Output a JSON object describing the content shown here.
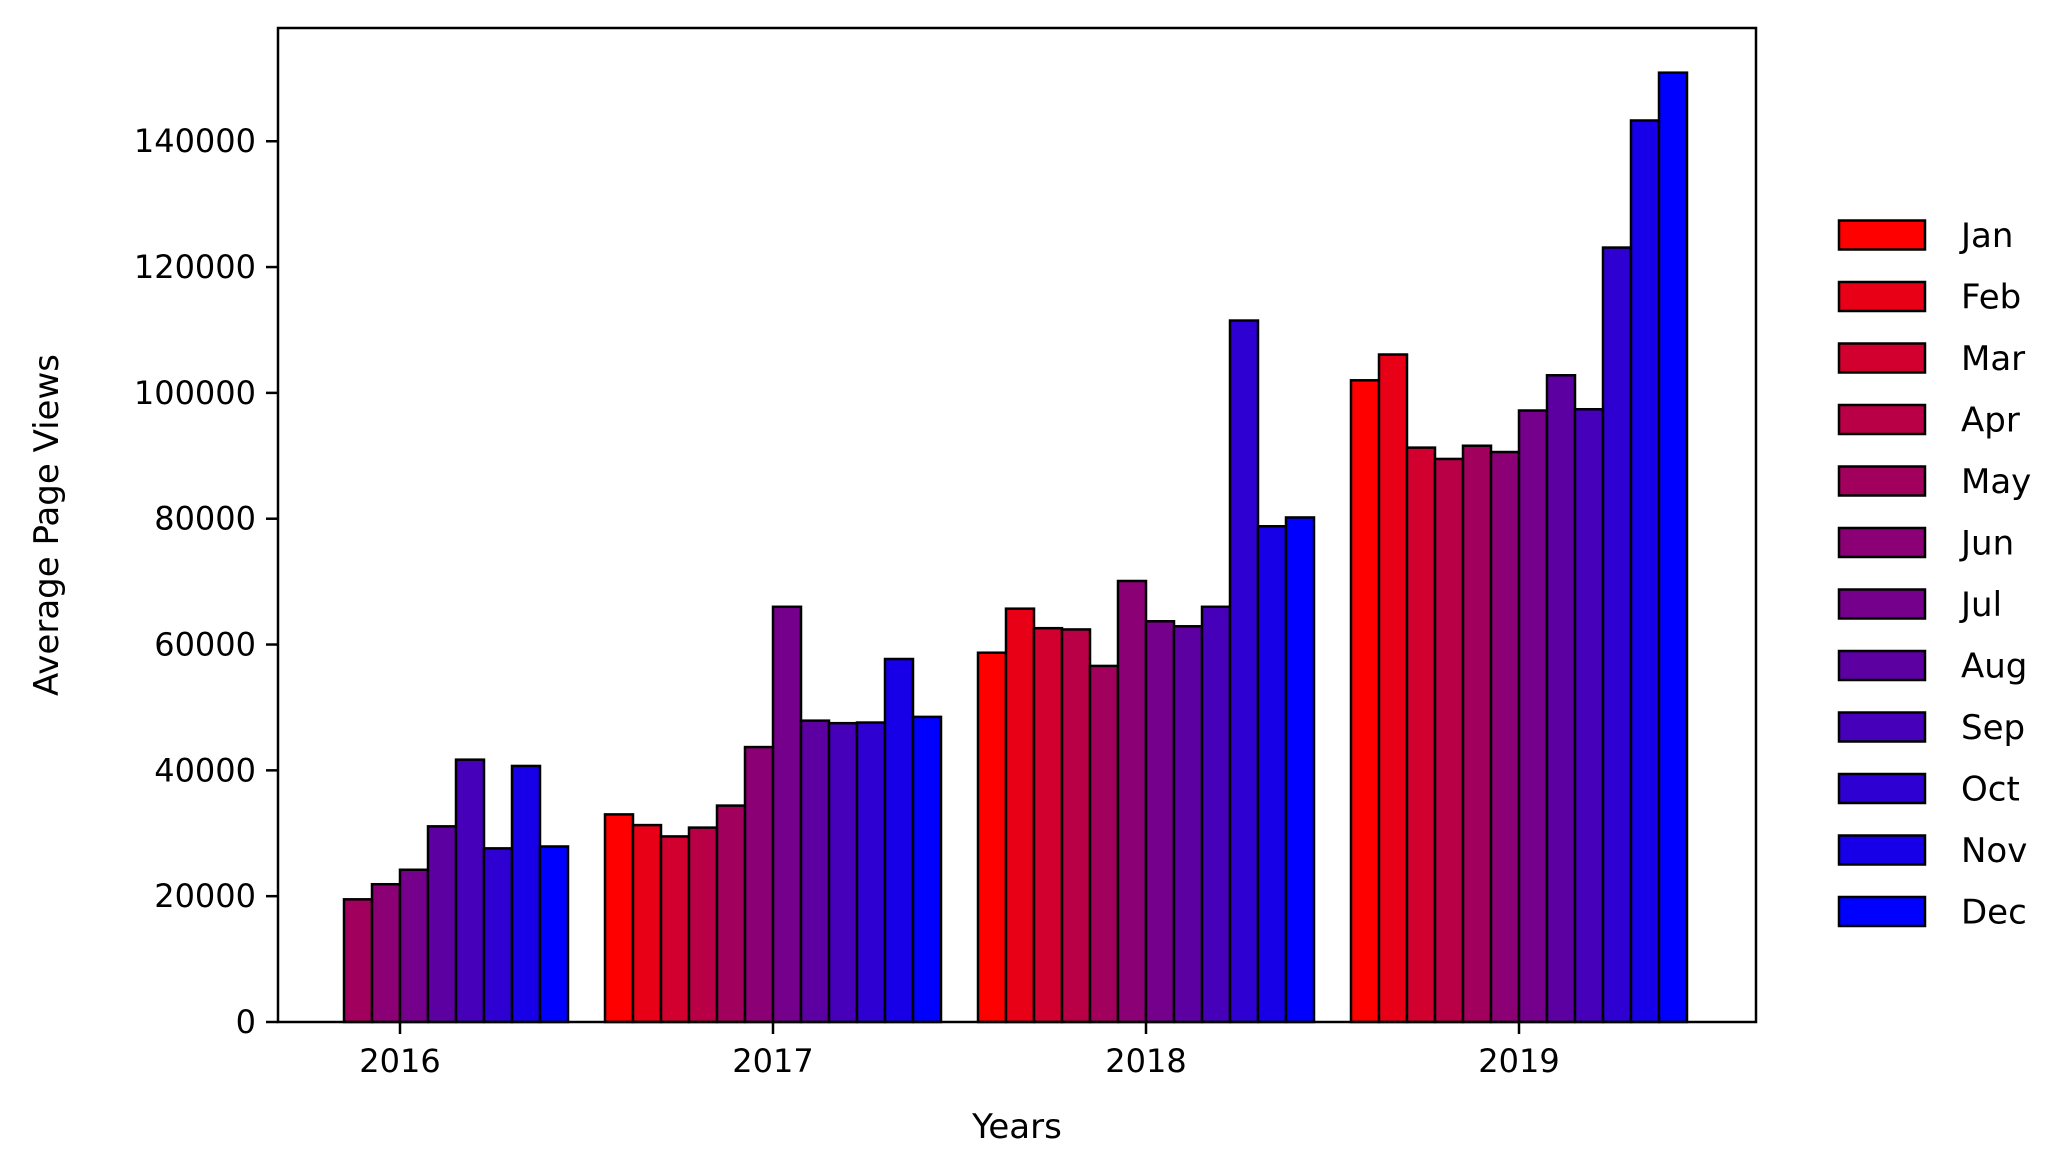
{
  "chart_data": {
    "type": "bar",
    "title": "",
    "xlabel": "Years",
    "ylabel": "Average Page Views",
    "categories": [
      "2016",
      "2017",
      "2018",
      "2019"
    ],
    "ylim": [
      0,
      158000
    ],
    "yticks": [
      0,
      20000,
      40000,
      60000,
      80000,
      100000,
      120000,
      140000
    ],
    "yticks_labels": [
      "0",
      "20000",
      "40000",
      "60000",
      "80000",
      "100000",
      "120000",
      "140000"
    ],
    "grid": false,
    "legend_position": "right",
    "series": [
      {
        "name": "Jan",
        "color": "#ff0000",
        "values": [
          null,
          33000,
          58700,
          102000
        ]
      },
      {
        "name": "Feb",
        "color": "#e80017",
        "values": [
          null,
          31300,
          65700,
          106100
        ]
      },
      {
        "name": "Mar",
        "color": "#d1002e",
        "values": [
          null,
          29500,
          62600,
          91300
        ]
      },
      {
        "name": "Apr",
        "color": "#b90046",
        "values": [
          null,
          30900,
          62400,
          89500
        ]
      },
      {
        "name": "May",
        "color": "#a2005d",
        "values": [
          19500,
          34400,
          56600,
          91600
        ]
      },
      {
        "name": "Jun",
        "color": "#8b0074",
        "values": [
          21900,
          43700,
          70100,
          90600
        ]
      },
      {
        "name": "Jul",
        "color": "#74008b",
        "values": [
          24200,
          66000,
          63700,
          97200
        ]
      },
      {
        "name": "Aug",
        "color": "#5d00a2",
        "values": [
          31100,
          47900,
          62900,
          102800
        ]
      },
      {
        "name": "Sep",
        "color": "#4600b9",
        "values": [
          41700,
          47500,
          66000,
          97400
        ]
      },
      {
        "name": "Oct",
        "color": "#2e00d1",
        "values": [
          27600,
          47600,
          111500,
          123100
        ]
      },
      {
        "name": "Nov",
        "color": "#1700e8",
        "values": [
          40700,
          57700,
          78800,
          143300
        ]
      },
      {
        "name": "Dec",
        "color": "#0000ff",
        "values": [
          27900,
          48500,
          80200,
          150900
        ]
      }
    ]
  }
}
